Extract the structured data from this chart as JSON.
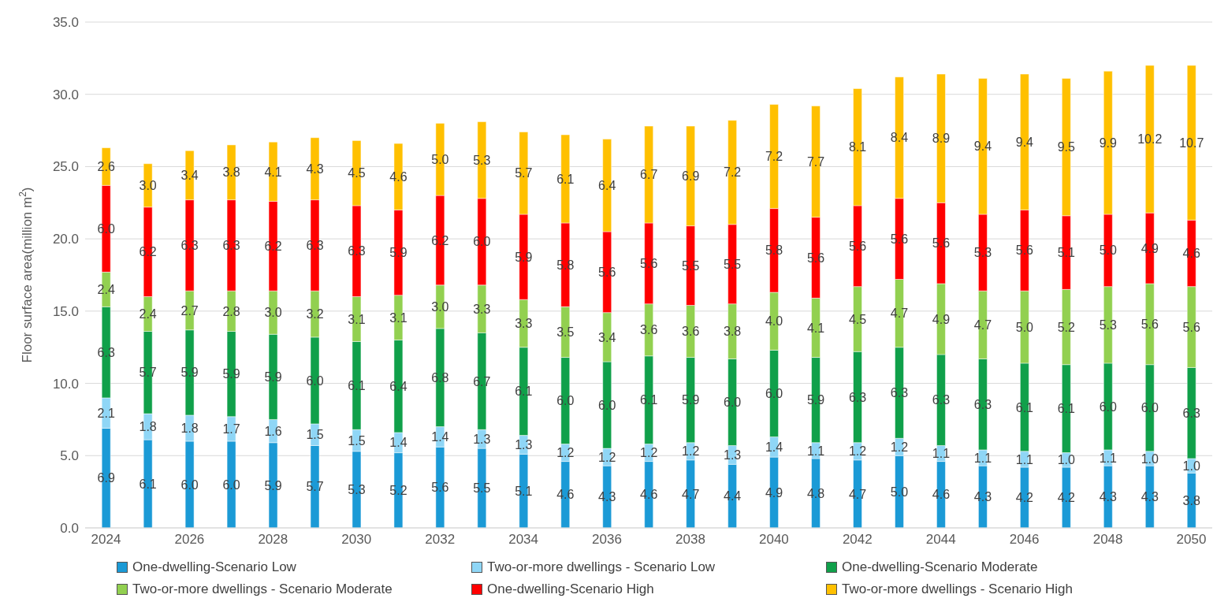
{
  "chart_data": {
    "type": "bar",
    "stacked": true,
    "ylabel": "Floor surface area(million m$^{2}$)",
    "categories": [
      "2024",
      null,
      "2026",
      null,
      "2028",
      null,
      "2030",
      null,
      "2032",
      null,
      "2034",
      null,
      "2036",
      null,
      "2038",
      null,
      "2040",
      null,
      "2042",
      null,
      "2044",
      null,
      "2046",
      null,
      "2048",
      null,
      "2050"
    ],
    "ylim": [
      0,
      35
    ],
    "yticks": [
      {
        "value": 0,
        "label": "0.0"
      },
      {
        "value": 5,
        "label": "5.0"
      },
      {
        "value": 10,
        "label": "10.0"
      },
      {
        "value": 15,
        "label": "15.0"
      },
      {
        "value": 20,
        "label": "20.0"
      },
      {
        "value": 25,
        "label": "25.0"
      },
      {
        "value": 30,
        "label": "30.0"
      },
      {
        "value": 35,
        "label": "35.0"
      }
    ],
    "grid": "y",
    "legend": "bottom",
    "series": [
      {
        "name": "One-dwelling-Scenario Low",
        "color": "#1b9ad6",
        "values": [
          6.9,
          6.1,
          6.0,
          6.0,
          5.9,
          5.7,
          5.3,
          5.2,
          5.6,
          5.5,
          5.1,
          4.6,
          4.3,
          4.6,
          4.7,
          4.4,
          4.9,
          4.8,
          4.7,
          5.0,
          4.6,
          4.3,
          4.2,
          4.2,
          4.3,
          4.3,
          3.8
        ],
        "value_labels": [
          "6.9",
          "6.1",
          "6.0",
          "6.0",
          "5.9",
          "5.7",
          "5.3",
          "5.2",
          "5.6",
          "5.5",
          "5.1",
          "4.6",
          "4.3",
          "4.6",
          "4.7",
          "4.4",
          "4.9",
          "4.8",
          "4.7",
          "5.0",
          "4.6",
          "4.3",
          "4.2",
          "4.2",
          "4.3",
          "4.3",
          "3.8"
        ]
      },
      {
        "name": "Two-or-more dwellings - Scenario Low",
        "color": "#8fd6f6",
        "values": [
          2.1,
          1.8,
          1.8,
          1.7,
          1.6,
          1.5,
          1.5,
          1.4,
          1.4,
          1.3,
          1.3,
          1.2,
          1.2,
          1.2,
          1.2,
          1.3,
          1.4,
          1.1,
          1.2,
          1.2,
          1.1,
          1.1,
          1.1,
          1.0,
          1.1,
          1.0,
          1.0
        ],
        "value_labels": [
          "2.1",
          "1.8",
          "1.8",
          "1.7",
          "1.6",
          "1.5",
          "1.5",
          "1.4",
          "1.4",
          "1.3",
          "1.3",
          "1.2",
          "1.2",
          "1.2",
          "1.2",
          "1.3",
          "1.4",
          "1.1",
          "1.2",
          "1.2",
          "1.1",
          "1.1",
          "1.1",
          "1.0",
          "1.1",
          "1.0",
          "1.0"
        ]
      },
      {
        "name": "One-dwelling-Scenario Moderate",
        "color": "#10a04a",
        "values": [
          6.3,
          5.7,
          5.9,
          5.9,
          5.9,
          6.0,
          6.1,
          6.4,
          6.8,
          6.7,
          6.1,
          6.0,
          6.0,
          6.1,
          5.9,
          6.0,
          6.0,
          5.9,
          6.3,
          6.3,
          6.3,
          6.3,
          6.1,
          6.1,
          6.0,
          6.0,
          6.3
        ],
        "value_labels": [
          "6.3",
          "5.7",
          "5.9",
          "5.9",
          "5.9",
          "6.0",
          "6.1",
          "6.4",
          "6.8",
          "6.7",
          "6.1",
          "6.0",
          "6.0",
          "6.1",
          "5.9",
          "6.0",
          "6.0",
          "5.9",
          "6.3",
          "6.3",
          "6.3",
          "6.3",
          "6.1",
          "6.1",
          "6.0",
          "6.0",
          "6.3"
        ]
      },
      {
        "name": "Two-or-more dwellings - Scenario Moderate",
        "color": "#92d050",
        "values": [
          2.4,
          2.4,
          2.7,
          2.8,
          3.0,
          3.2,
          3.1,
          3.1,
          3.0,
          3.3,
          3.3,
          3.5,
          3.4,
          3.6,
          3.6,
          3.8,
          4.0,
          4.1,
          4.5,
          4.7,
          4.9,
          4.7,
          5.0,
          5.2,
          5.3,
          5.6,
          5.6
        ],
        "value_labels": [
          "2.4",
          "2.4",
          "2.7",
          "2.8",
          "3.0",
          "3.2",
          "3.1",
          "3.1",
          "3.0",
          "3.3",
          "3.3",
          "3.5",
          "3.4",
          "3.6",
          "3.6",
          "3.8",
          "4.0",
          "4.1",
          "4.5",
          "4.7",
          "4.9",
          "4.7",
          "5.0",
          "5.2",
          "5.3",
          "5.6",
          "5.6"
        ]
      },
      {
        "name": "One-dwelling-Scenario High",
        "color": "#ff0000",
        "values": [
          6.0,
          6.2,
          6.3,
          6.3,
          6.2,
          6.3,
          6.3,
          5.9,
          6.2,
          6.0,
          5.9,
          5.8,
          5.6,
          5.6,
          5.5,
          5.5,
          5.8,
          5.6,
          5.6,
          5.6,
          5.6,
          5.3,
          5.6,
          5.1,
          5.0,
          4.9,
          4.6
        ],
        "value_labels": [
          "6.0",
          "6.2",
          "6.3",
          "6.3",
          "6.2",
          "6.3",
          "6.3",
          "5.9",
          "6.2",
          "6.0",
          "5.9",
          "5.8",
          "5.6",
          "5.6",
          "5.5",
          "5.5",
          "5.8",
          "5.6",
          "5.6",
          "5.6",
          "5.6",
          "5.3",
          "5.6",
          "5.1",
          "5.0",
          "4.9",
          "4.6"
        ]
      },
      {
        "name": "Two-or-more dwellings - Scenario High",
        "color": "#ffc000",
        "values": [
          2.6,
          3.0,
          3.4,
          3.8,
          4.1,
          4.3,
          4.5,
          4.6,
          5.0,
          5.3,
          5.7,
          6.1,
          6.4,
          6.7,
          6.9,
          7.2,
          7.2,
          7.7,
          8.1,
          8.4,
          8.9,
          9.4,
          9.4,
          9.5,
          9.9,
          10.2,
          10.7
        ],
        "value_labels": [
          "2.6",
          "3.0",
          "3.4",
          "3.8",
          "4.1",
          "4.3",
          "4.5",
          "4.6",
          "5.0",
          "5.3",
          "5.7",
          "6.1",
          "6.4",
          "6.7",
          "6.9",
          "7.2",
          "7.2",
          "7.7",
          "8.1",
          "8.4",
          "8.9",
          "9.4",
          "9.4",
          "9.5",
          "9.9",
          "10.2",
          "10.7"
        ]
      }
    ]
  }
}
